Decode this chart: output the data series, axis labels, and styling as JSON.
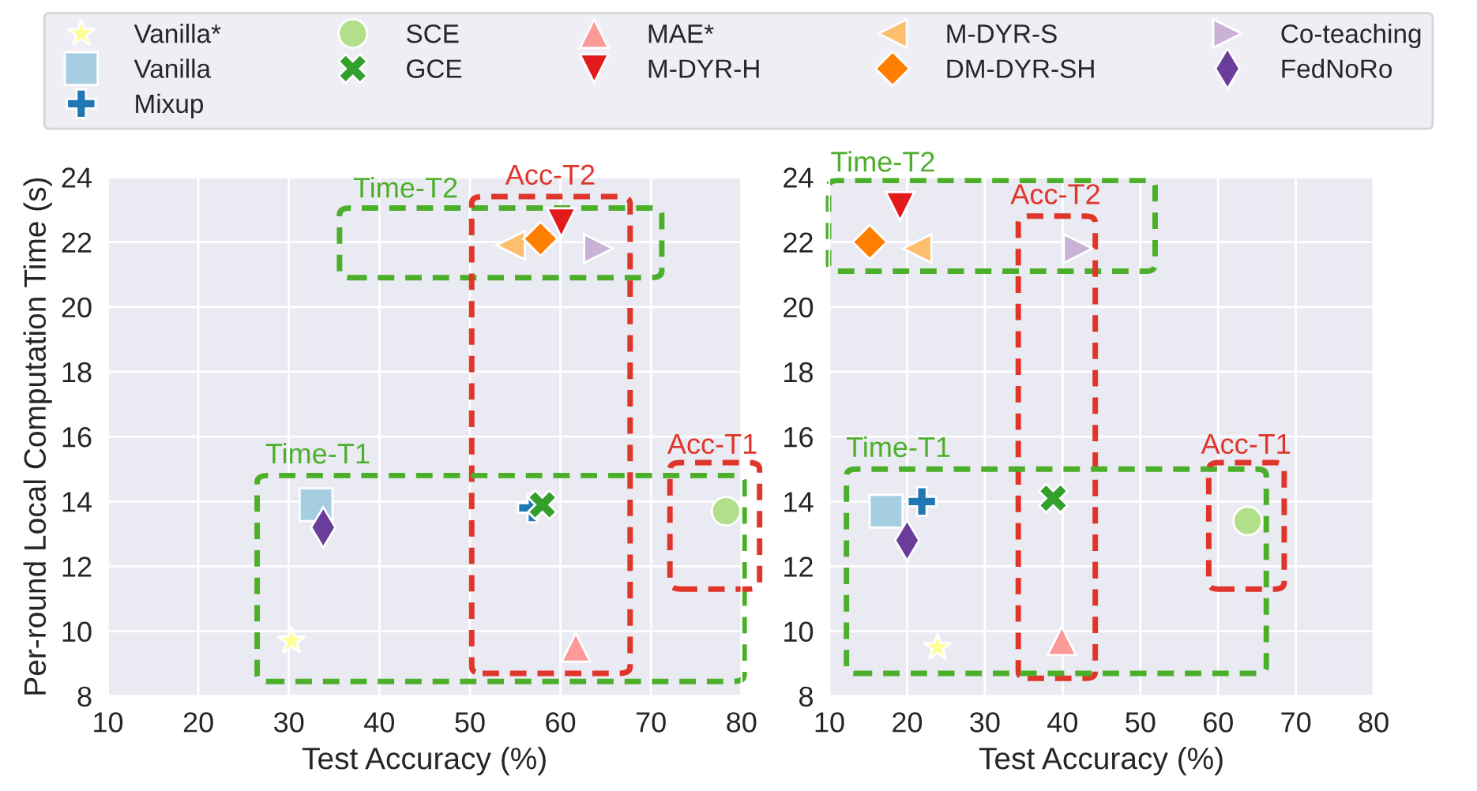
{
  "chart_data": [
    {
      "type": "scatter",
      "xlabel": "Test Accuracy (%)",
      "ylabel": "Per-round Local Computation Time (s)",
      "xlim": [
        10,
        80
      ],
      "ylim": [
        8,
        24
      ],
      "xticks": [
        10,
        20,
        30,
        40,
        50,
        60,
        70,
        80
      ],
      "yticks": [
        8,
        10,
        12,
        14,
        16,
        18,
        20,
        22,
        24
      ],
      "grid": true,
      "legend": "top",
      "annotations": [
        "Time-T2",
        "Acc-T2",
        "Time-T1",
        "Acc-T1"
      ],
      "series": [
        {
          "name": "Vanilla*",
          "color": "#ffff99",
          "marker": "star",
          "x": [
            30.3
          ],
          "values": [
            9.7
          ]
        },
        {
          "name": "Vanilla",
          "color": "#a6cee3",
          "marker": "square",
          "x": [
            33.0
          ],
          "values": [
            13.9
          ]
        },
        {
          "name": "Mixup",
          "color": "#1f78b4",
          "marker": "plus",
          "x": [
            56.9
          ],
          "values": [
            13.8
          ]
        },
        {
          "name": "SCE",
          "color": "#b2df8a",
          "marker": "circle",
          "x": [
            78.3
          ],
          "values": [
            13.7
          ]
        },
        {
          "name": "GCE",
          "color": "#33a02c",
          "marker": "cross",
          "x": [
            58.0
          ],
          "values": [
            13.9
          ]
        },
        {
          "name": "MAE*",
          "color": "#fb9a99",
          "marker": "triangle-up",
          "x": [
            61.7
          ],
          "values": [
            9.5
          ]
        },
        {
          "name": "M-DYR-H",
          "color": "#e31a1c",
          "marker": "triangle-down",
          "x": [
            60.1
          ],
          "values": [
            22.6
          ]
        },
        {
          "name": "M-DYR-S",
          "color": "#fdbf6f",
          "marker": "triangle-left",
          "x": [
            54.5
          ],
          "values": [
            21.9
          ]
        },
        {
          "name": "DM-DYR-SH",
          "color": "#ff7f00",
          "marker": "diamond",
          "x": [
            57.8
          ],
          "values": [
            22.1
          ]
        },
        {
          "name": "Co-teaching",
          "color": "#cab2d6",
          "marker": "triangle-right",
          "x": [
            64.2
          ],
          "values": [
            21.8
          ]
        },
        {
          "name": "FedNoRo",
          "color": "#6a3d9a",
          "x": [
            33.8
          ],
          "values": [
            13.2
          ]
        }
      ]
    },
    {
      "type": "scatter",
      "xlabel": "Test Accuracy (%)",
      "xlim": [
        10,
        80
      ],
      "ylim": [
        8,
        24
      ],
      "xticks": [
        10,
        20,
        30,
        40,
        50,
        60,
        70,
        80
      ],
      "yticks": [
        8,
        10,
        12,
        14,
        16,
        18,
        20,
        22,
        24
      ],
      "grid": true,
      "annotations": [
        "Time-T2",
        "Acc-T2",
        "Time-T1",
        "Acc-T1"
      ],
      "series": [
        {
          "color": "#ffff99",
          "marker": "star",
          "x": [
            23.9
          ],
          "values": [
            9.5
          ]
        },
        {
          "color": "#a6cee3",
          "marker": "square",
          "x": [
            17.3
          ],
          "values": [
            13.7
          ]
        },
        {
          "color": "#1f78b4",
          "marker": "plus",
          "x": [
            21.9
          ],
          "values": [
            14.0
          ]
        },
        {
          "color": "#b2df8a",
          "marker": "circle",
          "x": [
            63.8
          ],
          "values": [
            13.4
          ]
        },
        {
          "color": "#33a02c",
          "marker": "cross",
          "x": [
            38.8
          ],
          "values": [
            14.1
          ]
        },
        {
          "color": "#fb9a99",
          "marker": "triangle-up",
          "x": [
            39.9
          ],
          "values": [
            9.7
          ]
        },
        {
          "color": "#e31a1c",
          "marker": "triangle-down",
          "x": [
            19.1
          ],
          "values": [
            23.1
          ]
        },
        {
          "color": "#fdbf6f",
          "marker": "triangle-left",
          "x": [
            21.3
          ],
          "values": [
            21.8
          ]
        },
        {
          "color": "#ff7f00",
          "marker": "diamond",
          "x": [
            15.2
          ],
          "values": [
            22.0
          ]
        },
        {
          "color": "#cab2d6",
          "marker": "triangle-right",
          "x": [
            42.0
          ],
          "values": [
            21.8
          ]
        },
        {
          "color": "#6a3d9a",
          "x": [
            20.0
          ],
          "values": [
            12.8
          ]
        }
      ]
    }
  ]
}
